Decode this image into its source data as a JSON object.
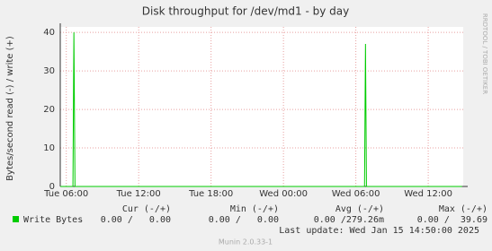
{
  "chart_data": {
    "type": "line",
    "title": "Disk throughput for /dev/md1 - by day",
    "ylabel": "Bytes/second read (-) / write (+)",
    "side_label": "RRDTOOL / TOBI OETIKER",
    "x": [
      5.5,
      6.55,
      6.63,
      6.72,
      30.72,
      30.8,
      30.88,
      38.8
    ],
    "series": [
      {
        "name": "Write Bytes",
        "color": "#00cc00",
        "values": [
          0,
          0,
          40,
          0,
          0,
          37,
          0,
          0
        ]
      }
    ],
    "xlim": [
      5.5,
      38.9
    ],
    "xticks": [
      {
        "value": 6,
        "label": "Tue 06:00"
      },
      {
        "value": 12,
        "label": "Tue 12:00"
      },
      {
        "value": 18,
        "label": "Tue 18:00"
      },
      {
        "value": 24,
        "label": "Wed 00:00"
      },
      {
        "value": 30,
        "label": "Wed 06:00"
      },
      {
        "value": 36,
        "label": "Wed 12:00"
      }
    ],
    "ylim": [
      0,
      40.5
    ],
    "yticks": [
      0,
      10,
      20,
      30,
      40
    ],
    "grid": true,
    "summary": {
      "headers": [
        "Cur (-/+)",
        "Min (-/+)",
        "Avg (-/+)",
        "Max (-/+)"
      ],
      "cells": [
        "0.00 /   0.00",
        "0.00 /   0.00",
        "0.00 /279.26m",
        "0.00 /  39.69"
      ]
    },
    "last_update": "Last update: Wed Jan 15 14:50:00 2025",
    "footer": "Munin 2.0.33-1"
  }
}
